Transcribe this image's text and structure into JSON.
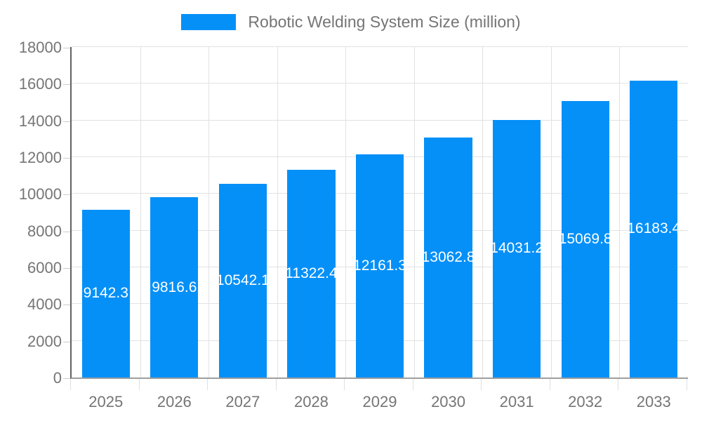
{
  "chart_data": {
    "type": "bar",
    "title": "Robotic Welding System Size (million)",
    "legend": {
      "position": "top",
      "entries": [
        "Robotic Welding System Size (million)"
      ]
    },
    "categories": [
      "2025",
      "2026",
      "2027",
      "2028",
      "2029",
      "2030",
      "2031",
      "2032",
      "2033"
    ],
    "series": [
      {
        "name": "Robotic Welding System Size (million)",
        "values": [
          9142.3,
          9816.6,
          10542.1,
          11322.4,
          12161.3,
          13062.8,
          14031.2,
          15069.8,
          16183.4
        ],
        "data_labels": [
          "9142.3",
          "9816.6",
          "10542.1",
          "11322.4",
          "12161.3",
          "13062.8",
          "14031.2",
          "15069.8",
          "16183.4"
        ]
      }
    ],
    "xlabel": "",
    "ylabel": "",
    "ylim": [
      0,
      18000
    ],
    "yticks": [
      0,
      2000,
      4000,
      6000,
      8000,
      10000,
      12000,
      14000,
      16000,
      18000
    ],
    "grid": true,
    "colors": {
      "bar": "#0590f8",
      "axis_text": "#757575",
      "data_label_text": "#ffffff",
      "gridline": "#e2e2e2",
      "x_axis_line": "#9e9e9e",
      "y_axis_line": "#616161",
      "background": "#ffffff"
    }
  }
}
